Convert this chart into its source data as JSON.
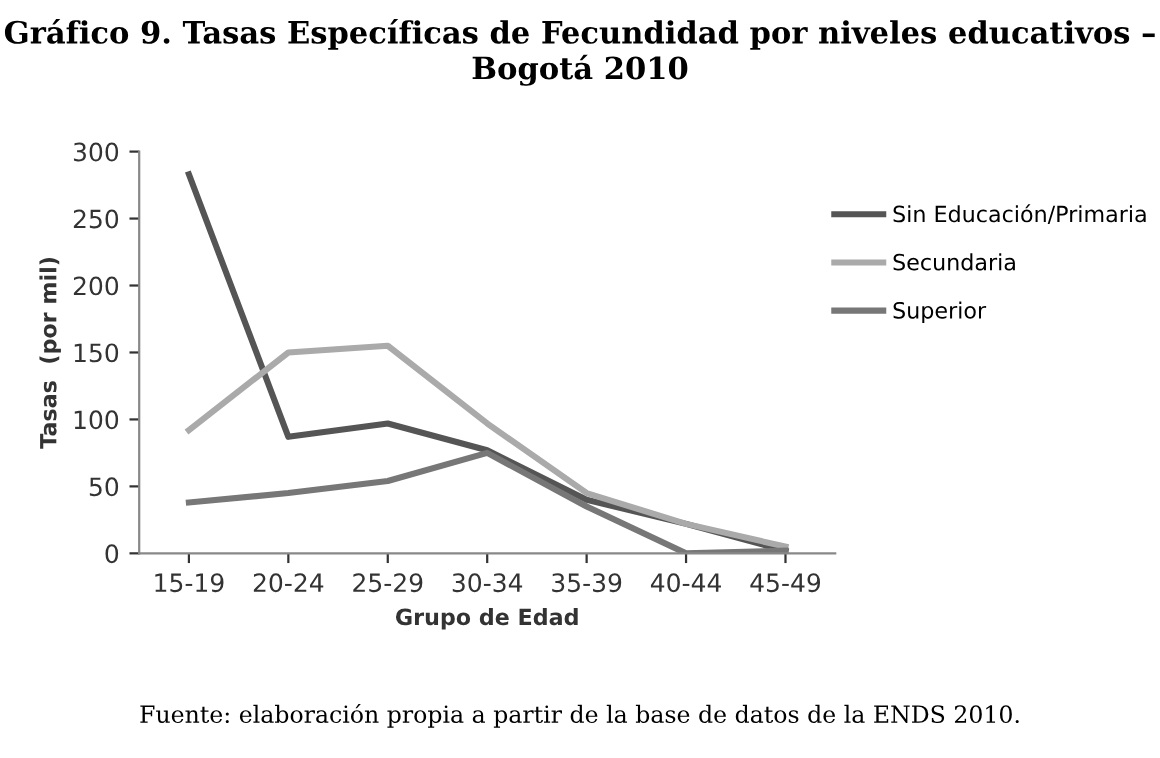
{
  "chart_data": {
    "type": "line",
    "title": "Gráfico 9. Tasas Específicas de Fecundidad por niveles educativos – Bogotá 2010",
    "xlabel": "Grupo de Edad",
    "ylabel": "Tasas  (por mil)",
    "categories": [
      "15-19",
      "20-24",
      "25-29",
      "30-34",
      "35-39",
      "40-44",
      "45-49"
    ],
    "series": [
      {
        "name": "Sin Educación/Primaria",
        "color": "#555555",
        "values": [
          283,
          87,
          97,
          77,
          40,
          22,
          2
        ]
      },
      {
        "name": "Secundaria",
        "color": "#aaaaaa",
        "values": [
          92,
          150,
          155,
          97,
          45,
          22,
          5
        ]
      },
      {
        "name": "Superior",
        "color": "#777777",
        "values": [
          38,
          45,
          54,
          75,
          35,
          0,
          2
        ]
      }
    ],
    "ylim": [
      0,
      300
    ],
    "yticks": [
      0,
      50,
      100,
      150,
      200,
      250,
      300
    ],
    "grid": false,
    "legend": "right",
    "marker": "none",
    "line_style": "solid",
    "annotations": [
      "Fuente: elaboración propia a partir de la base de datos de la ENDS 2010."
    ]
  }
}
